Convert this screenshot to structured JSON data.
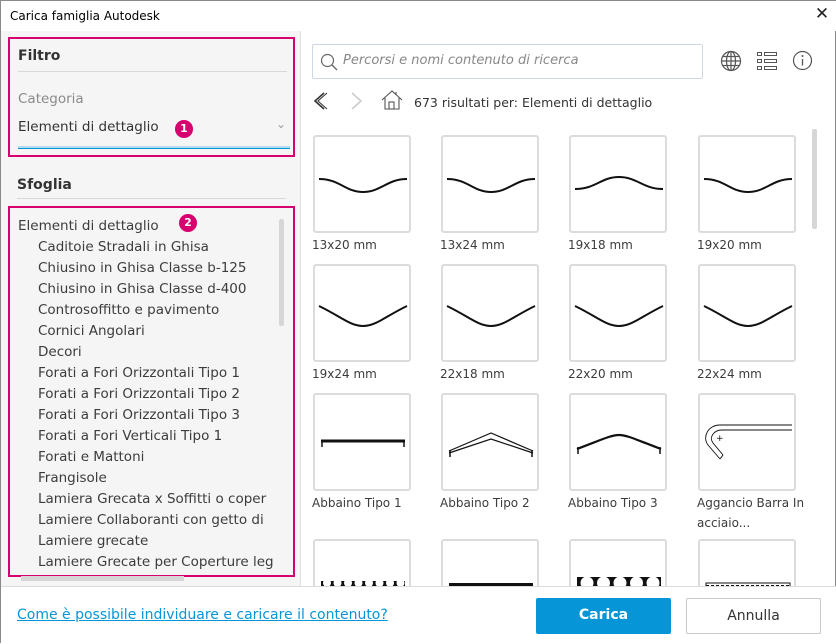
{
  "window": {
    "title": "Carica famiglia Autodesk",
    "close_icon": "close-icon"
  },
  "filter": {
    "heading": "Filtro",
    "category_label": "Categoria",
    "category_value": "Elementi di dettaglio",
    "badge": "1"
  },
  "browse": {
    "heading": "Sfoglia",
    "badge": "2",
    "root": "Elementi di dettaglio",
    "items": [
      "Caditoie Stradali in Ghisa",
      "Chiusino in Ghisa Classe b-125",
      "Chiusino in Ghisa Classe d-400",
      "Controsoffitto e pavimento",
      "Cornici Angolari",
      "Decori",
      "Forati a Fori Orizzontali Tipo 1",
      "Forati a Fori Orizzontali Tipo 2",
      "Forati a Fori Orizzontali Tipo 3",
      "Forati a Fori Verticali Tipo 1",
      "Forati e Mattoni",
      "Frangisole",
      "Lamiera Grecata x Soffitti o coper",
      "Lamiere Collaboranti con getto di",
      "Lamiere grecate",
      "Lamiere Grecate per Coperture leg"
    ]
  },
  "search": {
    "placeholder": "Percorsi e nomi contenuto di ricerca"
  },
  "nav": {
    "results": "673 risultati per:",
    "query": "Elementi di dettaglio"
  },
  "grid": {
    "items": [
      {
        "label": "13x20 mm",
        "shape": "wave-down"
      },
      {
        "label": "13x24 mm",
        "shape": "wave-down"
      },
      {
        "label": "19x18 mm",
        "shape": "wave-up"
      },
      {
        "label": "19x20 mm",
        "shape": "wave-down"
      },
      {
        "label": "19x24 mm",
        "shape": "sag"
      },
      {
        "label": "22x18 mm",
        "shape": "sag"
      },
      {
        "label": "22x20 mm",
        "shape": "sag"
      },
      {
        "label": "22x24 mm",
        "shape": "sag"
      },
      {
        "label": "Abbaino Tipo 1",
        "shape": "flat"
      },
      {
        "label": "Abbaino Tipo 2",
        "shape": "peak"
      },
      {
        "label": "Abbaino Tipo 3",
        "shape": "arch"
      },
      {
        "label": "Aggancio Barra In acciaio...",
        "shape": "hook"
      },
      {
        "label": "",
        "shape": "circles-small"
      },
      {
        "label": "",
        "shape": "bar"
      },
      {
        "label": "",
        "shape": "circles-big"
      },
      {
        "label": "",
        "shape": "panel"
      }
    ]
  },
  "footer": {
    "help_link": "Come è possibile individuare e caricare il contenuto?",
    "load": "Carica",
    "cancel": "Annulla"
  },
  "colors": {
    "accent": "#0696d7",
    "highlight": "#d6006e",
    "link": "#0696d7"
  }
}
